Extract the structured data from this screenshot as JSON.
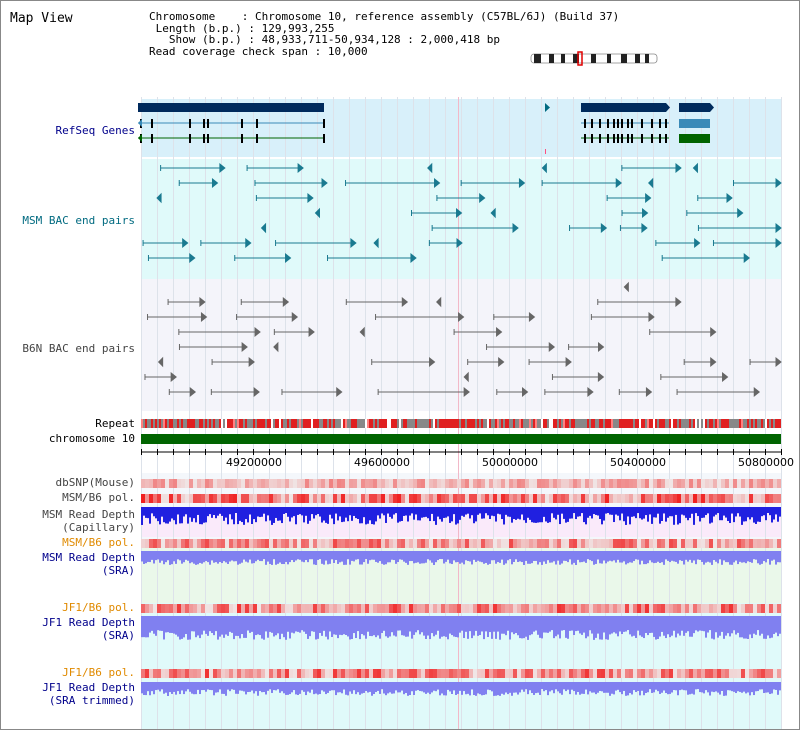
{
  "page": {
    "title": "Map View"
  },
  "info": {
    "chromosome_key": "Chromosome",
    "chromosome_val": "Chromosome 10, reference assembly (C57BL/6J) (Build 37)",
    "length_key": "Length (b.p.)",
    "length_val": "129,993,255",
    "show_key": "Show (b.p.)",
    "show_val": "48,933,711-50,934,128 : 2,000,418 bp",
    "coverage_key": "Read coverage check span",
    "coverage_val": "10,000"
  },
  "tracks": {
    "refseq": "RefSeq Genes",
    "msm_bac": "MSM BAC end pairs",
    "b6n_bac": "B6N BAC end pairs",
    "repeat": "Repeat",
    "chromosome": "chromosome 10",
    "dbsnp": "dbSNP(Mouse)",
    "msm_b6_pol_1": "MSM/B6 pol.",
    "msm_depth_cap_1": "MSM Read Depth",
    "msm_depth_cap_2": "(Capillary)",
    "msm_b6_pol_2": "MSM/B6 pol.",
    "msm_depth_sra_1": "MSM Read Depth",
    "msm_depth_sra_2": "(SRA)",
    "jf1_b6_pol_1": "JF1/B6 pol.",
    "jf1_depth_sra_1": "JF1 Read Depth",
    "jf1_depth_sra_2": "(SRA)",
    "jf1_b6_pol_2": "JF1/B6 pol.",
    "jf1_depth_trim_1": "JF1 Read Depth",
    "jf1_depth_trim_2": "(SRA trimmed)"
  },
  "axis": {
    "ticks": [
      "49200000",
      "49600000",
      "50000000",
      "50400000",
      "50800000"
    ]
  },
  "colors": {
    "navy": "#00008b",
    "teal": "#006a80",
    "orange": "#e08a00",
    "chromosome_green": "#006400",
    "depth_blue": "#2020e0",
    "depth_lilac": "#8080f0",
    "refseq_bg": "#d8f0fa",
    "msm_bg": "#e0fafa"
  }
}
